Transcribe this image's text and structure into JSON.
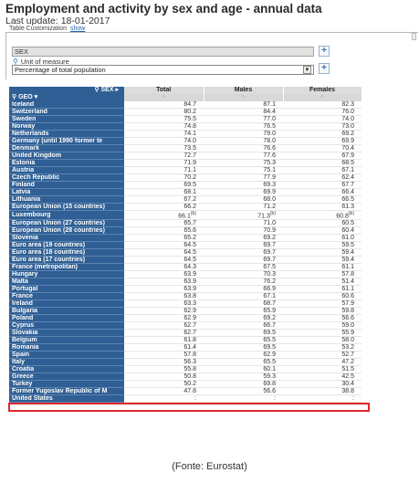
{
  "header": {
    "title": "Employment and activity by sex and age - annual data",
    "last_update": "Last update: 18-01-2017",
    "customization_label": "Table Customization",
    "customization_link": "show"
  },
  "filters": {
    "sex_value": "SEX",
    "unit_label": "Unit of measure",
    "unit_value": "Percentage of total population",
    "plus": "+"
  },
  "table": {
    "corner_label": "SEX",
    "geo_label": "GEO",
    "columns": [
      "Total",
      "Males",
      "Females"
    ],
    "rows": [
      {
        "country": "Iceland",
        "total": "84.7",
        "males": "87.1",
        "females": "82.3"
      },
      {
        "country": "Switzerland",
        "total": "80.2",
        "males": "84.4",
        "females": "76.0"
      },
      {
        "country": "Sweden",
        "total": "75.5",
        "males": "77.0",
        "females": "74.0"
      },
      {
        "country": "Norway",
        "total": "74.8",
        "males": "76.5",
        "females": "73.0"
      },
      {
        "country": "Netherlands",
        "total": "74.1",
        "males": "79.0",
        "females": "69.2"
      },
      {
        "country": "Germany (until 1990 former te",
        "total": "74.0",
        "males": "78.0",
        "females": "69.9"
      },
      {
        "country": "Denmark",
        "total": "73.5",
        "males": "76.6",
        "females": "70.4"
      },
      {
        "country": "United Kingdom",
        "total": "72.7",
        "males": "77.6",
        "females": "67.9"
      },
      {
        "country": "Estonia",
        "total": "71.9",
        "males": "75.3",
        "females": "68.5"
      },
      {
        "country": "Austria",
        "total": "71.1",
        "males": "75.1",
        "females": "67.1"
      },
      {
        "country": "Czech Republic",
        "total": "70.2",
        "males": "77.9",
        "females": "62.4"
      },
      {
        "country": "Finland",
        "total": "69.5",
        "males": "69.3",
        "females": "67.7"
      },
      {
        "country": "Latvia",
        "total": "68.1",
        "males": "69.9",
        "females": "66.4"
      },
      {
        "country": "Lithuania",
        "total": "67.2",
        "males": "68.0",
        "females": "66.5"
      },
      {
        "country": "European Union (15 countries)",
        "total": "66.2",
        "males": "71.2",
        "females": "61.3"
      },
      {
        "country": "Luxembourg",
        "total": "66.1",
        "total_flag": "(b)",
        "males": "71.3",
        "males_flag": "(b)",
        "females": "60.8",
        "females_flag": "(b)"
      },
      {
        "country": "European Union (27 countries)",
        "total": "65.7",
        "males": "71.0",
        "females": "60.5"
      },
      {
        "country": "European Union (28 countries)",
        "total": "65.6",
        "males": "70.9",
        "females": "60.4"
      },
      {
        "country": "Slovenia",
        "total": "65.2",
        "males": "69.2",
        "females": "61.0"
      },
      {
        "country": "Euro area (19 countries)",
        "total": "64.5",
        "males": "69.7",
        "females": "59.5"
      },
      {
        "country": "Euro area (18 countries)",
        "total": "64.5",
        "males": "69.7",
        "females": "59.4"
      },
      {
        "country": "Euro area (17 countries)",
        "total": "64.5",
        "males": "69.7",
        "females": "59.4"
      },
      {
        "country": "France (metropolitan)",
        "total": "64.3",
        "males": "67.5",
        "females": "61.1"
      },
      {
        "country": "Hungary",
        "total": "63.9",
        "males": "70.3",
        "females": "57.8"
      },
      {
        "country": "Malta",
        "total": "63.9",
        "males": "76.2",
        "females": "51.4"
      },
      {
        "country": "Portugal",
        "total": "63.9",
        "males": "66.9",
        "females": "61.1"
      },
      {
        "country": "France",
        "total": "63.8",
        "males": "67.1",
        "females": "60.6"
      },
      {
        "country": "Ireland",
        "total": "63.3",
        "males": "68.7",
        "females": "57.9"
      },
      {
        "country": "Bulgaria",
        "total": "62.9",
        "males": "65.9",
        "females": "59.8"
      },
      {
        "country": "Poland",
        "total": "62.9",
        "males": "69.2",
        "females": "56.6"
      },
      {
        "country": "Cyprus",
        "total": "62.7",
        "males": "66.7",
        "females": "59.0"
      },
      {
        "country": "Slovakia",
        "total": "62.7",
        "males": "69.5",
        "females": "55.9"
      },
      {
        "country": "Belgium",
        "total": "61.8",
        "males": "65.5",
        "females": "58.0"
      },
      {
        "country": "Romania",
        "total": "61.4",
        "males": "69.5",
        "females": "53.2"
      },
      {
        "country": "Spain",
        "total": "57.8",
        "males": "62.9",
        "females": "52.7"
      },
      {
        "country": "Italy",
        "total": "56.3",
        "males": "65.5",
        "females": "47.2"
      },
      {
        "country": "Croatia",
        "total": "55.8",
        "males": "60.1",
        "females": "51.5"
      },
      {
        "country": "Greece",
        "total": "50.8",
        "males": "59.3",
        "females": "42.5"
      },
      {
        "country": "Turkey",
        "total": "50.2",
        "males": "69.8",
        "females": "30.4"
      },
      {
        "country": "Former Yugoslav Republic of M",
        "total": "47.8",
        "males": "56.6",
        "females": "38.8"
      },
      {
        "country": "United States",
        "total": ":",
        "males": ":",
        "females": ":"
      }
    ]
  },
  "caption": "(Fonte: Eurostat)"
}
